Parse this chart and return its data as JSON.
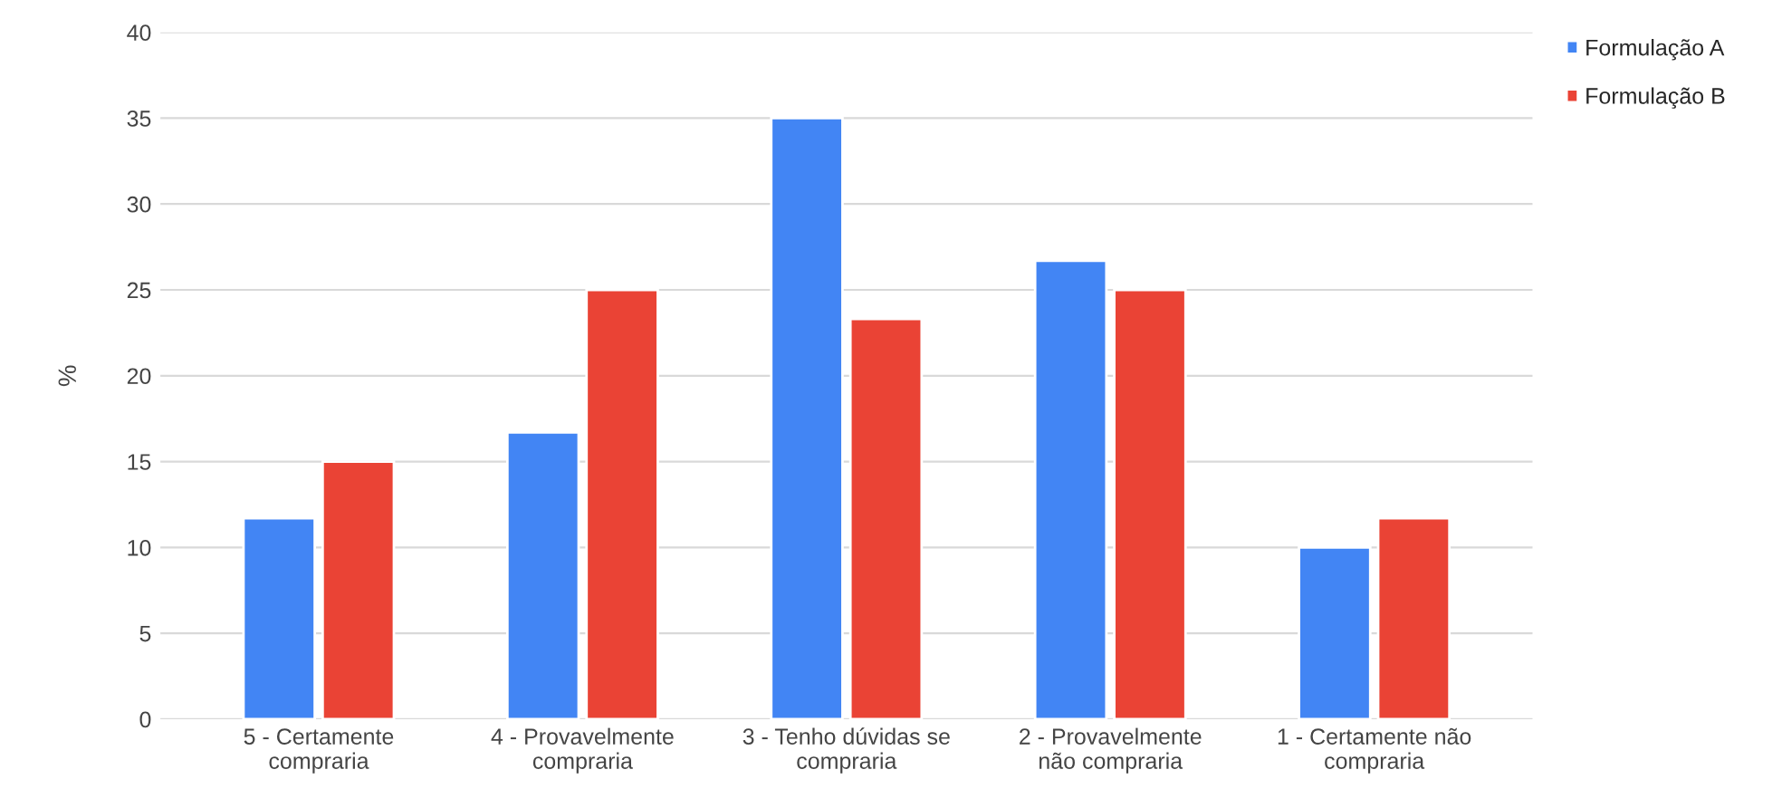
{
  "chart_data": {
    "type": "bar",
    "ylabel": "%",
    "categories": [
      "5 - Certamente\ncompraria",
      "4 - Provavelmente\ncompraria",
      "3 - Tenho dúvidas se\ncompraria",
      "2 - Provavelmente\nnão compraria",
      "1 - Certamente não\ncompraria"
    ],
    "series": [
      {
        "name": "Formulação A",
        "color": "#4285f4",
        "values": [
          11.7,
          16.7,
          35,
          26.7,
          10
        ]
      },
      {
        "name": "Formulação B",
        "color": "#ea4335",
        "values": [
          15,
          25,
          23.3,
          25,
          11.7
        ]
      }
    ],
    "ylim": [
      0,
      40
    ],
    "yticks": [
      0,
      5,
      10,
      15,
      20,
      25,
      30,
      35,
      40
    ],
    "grid": "y",
    "legend": "top right"
  }
}
